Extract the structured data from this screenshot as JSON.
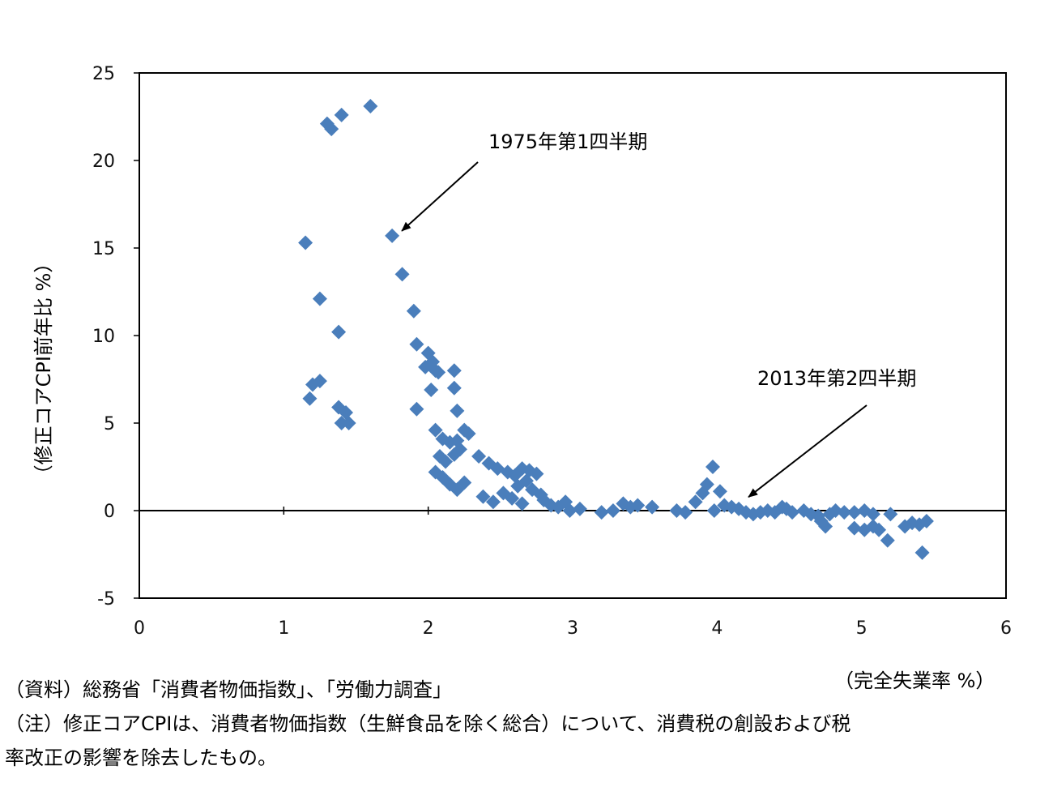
{
  "chart_data": {
    "type": "scatter",
    "title": "",
    "xlabel": "（完全失業率 %）",
    "ylabel": "（修正コアCPI前年比 %）",
    "xlim": [
      0,
      6
    ],
    "ylim": [
      -5,
      25
    ],
    "x_ticks": [
      "0",
      "1",
      "2",
      "3",
      "4",
      "5",
      "6"
    ],
    "y_ticks": [
      "-5",
      "0",
      "5",
      "10",
      "15",
      "20",
      "25"
    ],
    "marker": "diamond",
    "marker_color": "#4a7ebb",
    "axis_color": "#000000",
    "grid": false,
    "points": [
      [
        1.3,
        22.1
      ],
      [
        1.33,
        21.8
      ],
      [
        1.4,
        22.6
      ],
      [
        1.6,
        23.1
      ],
      [
        1.15,
        15.3
      ],
      [
        1.75,
        15.7
      ],
      [
        1.82,
        13.5
      ],
      [
        1.25,
        12.1
      ],
      [
        1.38,
        10.2
      ],
      [
        1.9,
        11.4
      ],
      [
        1.2,
        7.2
      ],
      [
        1.25,
        7.4
      ],
      [
        1.18,
        6.4
      ],
      [
        1.38,
        5.9
      ],
      [
        1.43,
        5.6
      ],
      [
        1.4,
        5.0
      ],
      [
        1.45,
        5.0
      ],
      [
        1.92,
        9.5
      ],
      [
        1.98,
        8.2
      ],
      [
        2.0,
        9.0
      ],
      [
        2.03,
        8.5
      ],
      [
        2.05,
        8.0
      ],
      [
        2.07,
        7.9
      ],
      [
        2.18,
        8.0
      ],
      [
        2.18,
        7.0
      ],
      [
        2.02,
        6.9
      ],
      [
        2.2,
        5.7
      ],
      [
        1.92,
        5.8
      ],
      [
        2.05,
        4.6
      ],
      [
        2.1,
        4.1
      ],
      [
        2.15,
        3.9
      ],
      [
        2.2,
        4.0
      ],
      [
        2.25,
        4.6
      ],
      [
        2.28,
        4.4
      ],
      [
        2.22,
        3.5
      ],
      [
        2.08,
        3.1
      ],
      [
        2.12,
        2.8
      ],
      [
        2.18,
        3.2
      ],
      [
        2.05,
        2.2
      ],
      [
        2.1,
        1.9
      ],
      [
        2.15,
        1.5
      ],
      [
        2.2,
        1.2
      ],
      [
        2.25,
        1.6
      ],
      [
        2.35,
        3.1
      ],
      [
        2.42,
        2.7
      ],
      [
        2.48,
        2.4
      ],
      [
        2.55,
        2.2
      ],
      [
        2.6,
        2.0
      ],
      [
        2.65,
        2.4
      ],
      [
        2.7,
        2.3
      ],
      [
        2.75,
        2.1
      ],
      [
        2.68,
        1.7
      ],
      [
        2.62,
        1.4
      ],
      [
        2.72,
        1.2
      ],
      [
        2.78,
        0.9
      ],
      [
        2.8,
        0.6
      ],
      [
        2.38,
        0.8
      ],
      [
        2.45,
        0.5
      ],
      [
        2.52,
        1.0
      ],
      [
        2.58,
        0.7
      ],
      [
        2.65,
        0.4
      ],
      [
        2.85,
        0.3
      ],
      [
        2.9,
        0.2
      ],
      [
        2.95,
        0.5
      ],
      [
        2.98,
        0.0
      ],
      [
        3.05,
        0.1
      ],
      [
        3.2,
        -0.1
      ],
      [
        3.28,
        0.0
      ],
      [
        3.35,
        0.4
      ],
      [
        3.4,
        0.2
      ],
      [
        3.45,
        0.3
      ],
      [
        3.55,
        0.2
      ],
      [
        3.72,
        0.0
      ],
      [
        3.78,
        -0.1
      ],
      [
        3.85,
        0.5
      ],
      [
        3.9,
        1.0
      ],
      [
        3.93,
        1.5
      ],
      [
        3.97,
        2.5
      ],
      [
        4.02,
        1.1
      ],
      [
        4.05,
        0.3
      ],
      [
        3.98,
        0.0
      ],
      [
        4.1,
        0.2
      ],
      [
        4.15,
        0.1
      ],
      [
        4.2,
        -0.1
      ],
      [
        4.25,
        -0.2
      ],
      [
        4.3,
        -0.1
      ],
      [
        4.35,
        0.0
      ],
      [
        4.4,
        -0.1
      ],
      [
        4.45,
        0.2
      ],
      [
        4.48,
        0.1
      ],
      [
        4.52,
        -0.1
      ],
      [
        4.6,
        0.0
      ],
      [
        4.65,
        -0.2
      ],
      [
        4.7,
        -0.3
      ],
      [
        4.72,
        -0.6
      ],
      [
        4.75,
        -0.9
      ],
      [
        4.78,
        -0.2
      ],
      [
        4.82,
        0.0
      ],
      [
        4.88,
        -0.1
      ],
      [
        4.95,
        -0.1
      ],
      [
        5.02,
        0.0
      ],
      [
        5.08,
        -0.2
      ],
      [
        4.95,
        -1.0
      ],
      [
        5.02,
        -1.1
      ],
      [
        5.08,
        -0.9
      ],
      [
        5.12,
        -1.1
      ],
      [
        5.18,
        -1.7
      ],
      [
        5.2,
        -0.2
      ],
      [
        5.3,
        -0.9
      ],
      [
        5.35,
        -0.7
      ],
      [
        5.4,
        -0.8
      ],
      [
        5.45,
        -0.6
      ],
      [
        5.42,
        -2.4
      ]
    ],
    "annotations": [
      {
        "text": "1975年第1四半期",
        "x": 1.75,
        "y": 15.7
      },
      {
        "text": "2013年第2四半期",
        "x": 4.15,
        "y": 0.5
      }
    ]
  },
  "notes": {
    "source": "（資料）総務省「消費者物価指数」、「労働力調査」",
    "note_line1": "（注）修正コアCPIは、消費者物価指数（生鮮食品を除く総合）について、消費税の創設および税",
    "note_line2": "率改正の影響を除去したもの。"
  }
}
